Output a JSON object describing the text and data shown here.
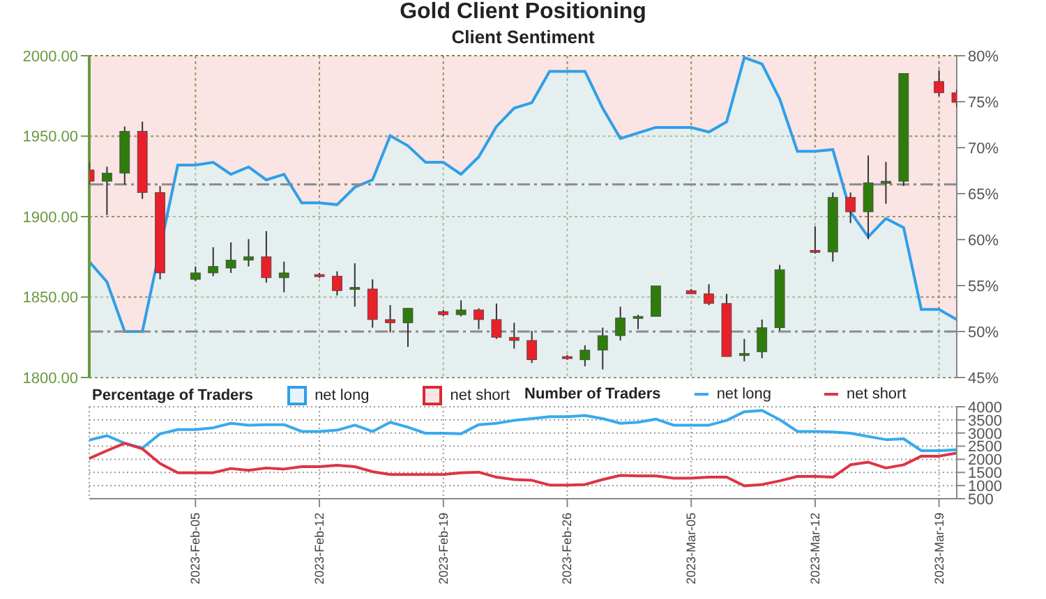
{
  "chart_data": [
    {
      "type": "candlestick",
      "title": "Gold Client Positioning",
      "subtitle": "Client Sentiment",
      "x": [
        "2023-01-30",
        "2023-01-31",
        "2023-02-01",
        "2023-02-02",
        "2023-02-03",
        "2023-02-05",
        "2023-02-06",
        "2023-02-07",
        "2023-02-08",
        "2023-02-09",
        "2023-02-10",
        "2023-02-12",
        "2023-02-13",
        "2023-02-14",
        "2023-02-15",
        "2023-02-16",
        "2023-02-17",
        "2023-02-19",
        "2023-02-20",
        "2023-02-21",
        "2023-02-22",
        "2023-02-23",
        "2023-02-24",
        "2023-02-26",
        "2023-02-27",
        "2023-02-28",
        "2023-03-01",
        "2023-03-02",
        "2023-03-03",
        "2023-03-05",
        "2023-03-06",
        "2023-03-07",
        "2023-03-08",
        "2023-03-09",
        "2023-03-10",
        "2023-03-12",
        "2023-03-13",
        "2023-03-14",
        "2023-03-15",
        "2023-03-16",
        "2023-03-17",
        "2023-03-19",
        "2023-03-20"
      ],
      "ohlc": [
        [
          1929,
          1934,
          1920,
          1922
        ],
        [
          1922,
          1931,
          1901,
          1927
        ],
        [
          1927,
          1956,
          1920,
          1953
        ],
        [
          1953,
          1959,
          1911,
          1915
        ],
        [
          1915,
          1919,
          1861,
          1865
        ],
        [
          1861,
          1869,
          1860,
          1865
        ],
        [
          1865,
          1881,
          1863,
          1869
        ],
        [
          1868,
          1884,
          1865,
          1873
        ],
        [
          1873,
          1886,
          1869,
          1875
        ],
        [
          1875,
          1891,
          1859,
          1862
        ],
        [
          1862,
          1872,
          1853,
          1865
        ],
        [
          1864,
          1865,
          1862,
          1863
        ],
        [
          1863,
          1866,
          1851,
          1854
        ],
        [
          1855,
          1871,
          1844,
          1856
        ],
        [
          1855,
          1861,
          1831,
          1836
        ],
        [
          1836,
          1845,
          1828,
          1834
        ],
        [
          1834,
          1843,
          1819,
          1843
        ],
        [
          1841,
          1842,
          1838,
          1839
        ],
        [
          1839,
          1848,
          1838,
          1842
        ],
        [
          1842,
          1843,
          1830,
          1836
        ],
        [
          1836,
          1846,
          1824,
          1825
        ],
        [
          1825,
          1834,
          1818,
          1823
        ],
        [
          1823,
          1829,
          1809,
          1811
        ],
        [
          1813,
          1814,
          1811,
          1812
        ],
        [
          1811,
          1820,
          1807,
          1817
        ],
        [
          1817,
          1831,
          1805,
          1826
        ],
        [
          1826,
          1844,
          1823,
          1837
        ],
        [
          1837,
          1839,
          1830,
          1838
        ],
        [
          1838,
          1857,
          1838,
          1857
        ],
        [
          1854,
          1855,
          1852,
          1852
        ],
        [
          1852,
          1858,
          1845,
          1846
        ],
        [
          1846,
          1852,
          1813,
          1813
        ],
        [
          1814,
          1824,
          1810,
          1815
        ],
        [
          1816,
          1836,
          1812,
          1831
        ],
        [
          1831,
          1870,
          1829,
          1867
        ],
        [
          1879,
          1894,
          1877,
          1878
        ],
        [
          1878,
          1915,
          1872,
          1912
        ],
        [
          1912,
          1915,
          1896,
          1903
        ],
        [
          1903,
          1938,
          1886,
          1921
        ],
        [
          1921,
          1934,
          1908,
          1922
        ],
        [
          1922,
          1989,
          1919,
          1989
        ],
        [
          1984,
          1991,
          1975,
          1977
        ],
        [
          1977,
          1979,
          1968,
          1971
        ]
      ],
      "colors": [
        "#e8202a",
        "#2e7d0c",
        "#2e7d0c",
        "#e8202a",
        "#e8202a",
        "#2e7d0c",
        "#2e7d0c",
        "#2e7d0c",
        "#2e7d0c",
        "#e8202a",
        "#2e7d0c",
        "#e8202a",
        "#e8202a",
        "#2e7d0c",
        "#e8202a",
        "#e8202a",
        "#2e7d0c",
        "#e8202a",
        "#2e7d0c",
        "#e8202a",
        "#e8202a",
        "#e8202a",
        "#e8202a",
        "#e8202a",
        "#2e7d0c",
        "#2e7d0c",
        "#2e7d0c",
        "#2e7d0c",
        "#2e7d0c",
        "#e8202a",
        "#e8202a",
        "#e8202a",
        "#2e7d0c",
        "#2e7d0c",
        "#2e7d0c",
        "#e8202a",
        "#2e7d0c",
        "#e8202a",
        "#2e7d0c",
        "#2e7d0c",
        "#2e7d0c",
        "#e8202a",
        "#e8202a"
      ],
      "series": [
        {
          "type": "area",
          "name": "net long",
          "axis": "y2",
          "color": "#2f9fe8",
          "x": [
            "2023-01-30",
            "2023-01-31",
            "2023-02-01",
            "2023-02-02",
            "2023-02-04",
            "2023-02-05",
            "2023-02-06",
            "2023-02-07",
            "2023-02-08",
            "2023-02-09",
            "2023-02-10",
            "2023-02-11",
            "2023-02-12",
            "2023-02-13",
            "2023-02-14",
            "2023-02-15",
            "2023-02-16",
            "2023-02-17",
            "2023-02-18",
            "2023-02-19",
            "2023-02-20",
            "2023-02-21",
            "2023-02-22",
            "2023-02-23",
            "2023-02-24",
            "2023-02-25",
            "2023-02-26",
            "2023-02-27",
            "2023-02-28",
            "2023-03-01",
            "2023-03-02",
            "2023-03-03",
            "2023-03-04",
            "2023-03-05",
            "2023-03-06",
            "2023-03-07",
            "2023-03-08",
            "2023-03-09",
            "2023-03-10",
            "2023-03-11",
            "2023-03-12",
            "2023-03-13",
            "2023-03-14",
            "2023-03-15",
            "2023-03-16",
            "2023-03-17",
            "2023-03-18",
            "2023-03-19",
            "2023-03-20"
          ],
          "values": [
            57.6,
            55.4,
            50,
            50,
            68.1,
            68.1,
            68.4,
            67.1,
            67.9,
            66.5,
            67.1,
            64,
            64,
            63.8,
            65.7,
            66.5,
            71.3,
            70.2,
            68.4,
            68.4,
            67.1,
            69,
            72.3,
            74.3,
            74.9,
            78.3,
            78.3,
            78.3,
            74.3,
            71,
            71.6,
            72.2,
            72.2,
            72.2,
            71.7,
            72.8,
            79.8,
            79.1,
            75.3,
            69.6,
            69.6,
            69.8,
            63,
            60.3,
            62.3,
            61.3,
            52.4,
            52.4,
            51.3
          ]
        }
      ],
      "bands": [
        {
          "axis": "y2",
          "from": 45,
          "to": 80,
          "label": "net short",
          "color": "#fbe4e4"
        }
      ],
      "ref_lines": [
        {
          "axis": "y2",
          "value": 50,
          "line_style": "dashdot",
          "color": "#8a8a8a"
        },
        {
          "axis": "y2",
          "value": 66,
          "line_style": "dashdot",
          "color": "#8a8a8a"
        }
      ],
      "legend_title": "Percentage of Traders",
      "legend": "bottom",
      "xlim": [
        "2023-01-30",
        "2023-03-20"
      ],
      "ylim": [
        1800,
        2000
      ],
      "yticks": [
        {
          "value": 1800,
          "label": "1800.00"
        },
        {
          "value": 1850,
          "label": "1850.00"
        },
        {
          "value": 1900,
          "label": "1900.00"
        },
        {
          "value": 1950,
          "label": "1950.00"
        },
        {
          "value": 2000,
          "label": "2000.00"
        }
      ],
      "y2lim": [
        45,
        80
      ],
      "y2ticks": [
        {
          "value": 45,
          "label": "45%"
        },
        {
          "value": 50,
          "label": "50%"
        },
        {
          "value": 55,
          "label": "55%"
        },
        {
          "value": 60,
          "label": "60%"
        },
        {
          "value": 65,
          "label": "65%"
        },
        {
          "value": 70,
          "label": "70%"
        },
        {
          "value": 75,
          "label": "75%"
        },
        {
          "value": 80,
          "label": "80%"
        }
      ],
      "xticks": [
        {
          "value": "2023-02-05",
          "label": null
        },
        {
          "value": "2023-02-12",
          "label": null
        },
        {
          "value": "2023-02-19",
          "label": null
        },
        {
          "value": "2023-02-26",
          "label": null
        },
        {
          "value": "2023-03-05",
          "label": null
        },
        {
          "value": "2023-03-12",
          "label": null
        },
        {
          "value": "2023-03-19",
          "label": null
        }
      ],
      "tick_labels": "y",
      "grid": true
    },
    {
      "type": "line",
      "legend_title": "Number of Traders",
      "legend": "top",
      "grid": true,
      "marker": "none",
      "x": [
        "2023-01-30",
        "2023-01-31",
        "2023-02-01",
        "2023-02-02",
        "2023-02-03",
        "2023-02-04",
        "2023-02-05",
        "2023-02-06",
        "2023-02-07",
        "2023-02-08",
        "2023-02-09",
        "2023-02-10",
        "2023-02-11",
        "2023-02-12",
        "2023-02-13",
        "2023-02-14",
        "2023-02-15",
        "2023-02-16",
        "2023-02-17",
        "2023-02-18",
        "2023-02-19",
        "2023-02-20",
        "2023-02-21",
        "2023-02-22",
        "2023-02-23",
        "2023-02-24",
        "2023-02-25",
        "2023-02-26",
        "2023-02-27",
        "2023-02-28",
        "2023-03-01",
        "2023-03-02",
        "2023-03-03",
        "2023-03-04",
        "2023-03-05",
        "2023-03-06",
        "2023-03-07",
        "2023-03-08",
        "2023-03-09",
        "2023-03-10",
        "2023-03-11",
        "2023-03-12",
        "2023-03-13",
        "2023-03-14",
        "2023-03-15",
        "2023-03-16",
        "2023-03-17",
        "2023-03-18",
        "2023-03-19",
        "2023-03-20"
      ],
      "series": [
        {
          "name": "net long",
          "color": "#3aa9ee",
          "values": [
            2730,
            2900,
            2610,
            2430,
            2970,
            3130,
            3130,
            3200,
            3370,
            3300,
            3320,
            3320,
            3060,
            3060,
            3110,
            3300,
            3060,
            3410,
            3220,
            2990,
            2990,
            2970,
            3320,
            3370,
            3480,
            3550,
            3620,
            3620,
            3670,
            3550,
            3370,
            3410,
            3530,
            3300,
            3300,
            3300,
            3480,
            3810,
            3860,
            3510,
            3060,
            3060,
            3040,
            2990,
            2870,
            2750,
            2780,
            2330,
            2330,
            2360
          ]
        },
        {
          "name": "net short",
          "color": "#dc3545",
          "values": [
            2030,
            2330,
            2610,
            2400,
            1840,
            1490,
            1490,
            1490,
            1650,
            1580,
            1670,
            1630,
            1720,
            1720,
            1770,
            1720,
            1530,
            1420,
            1420,
            1420,
            1420,
            1490,
            1510,
            1320,
            1230,
            1200,
            1020,
            1020,
            1040,
            1230,
            1390,
            1370,
            1370,
            1280,
            1280,
            1320,
            1320,
            990,
            1040,
            1180,
            1350,
            1350,
            1320,
            1790,
            1890,
            1670,
            1790,
            2120,
            2120,
            2240
          ]
        }
      ],
      "xlim": [
        "2023-01-30",
        "2023-03-20"
      ],
      "xticks": [
        {
          "value": "2023-02-05",
          "label": "2023-Feb-05"
        },
        {
          "value": "2023-02-12",
          "label": "2023-Feb-12"
        },
        {
          "value": "2023-02-19",
          "label": "2023-Feb-19"
        },
        {
          "value": "2023-02-26",
          "label": "2023-Feb-26"
        },
        {
          "value": "2023-03-05",
          "label": "2023-Mar-05"
        },
        {
          "value": "2023-03-12",
          "label": "2023-Mar-12"
        },
        {
          "value": "2023-03-19",
          "label": "2023-Mar-19"
        }
      ],
      "ylim": [
        500,
        4000
      ],
      "yticks": [
        500,
        1000,
        1500,
        2000,
        2500,
        3000,
        3500,
        4000
      ]
    }
  ]
}
